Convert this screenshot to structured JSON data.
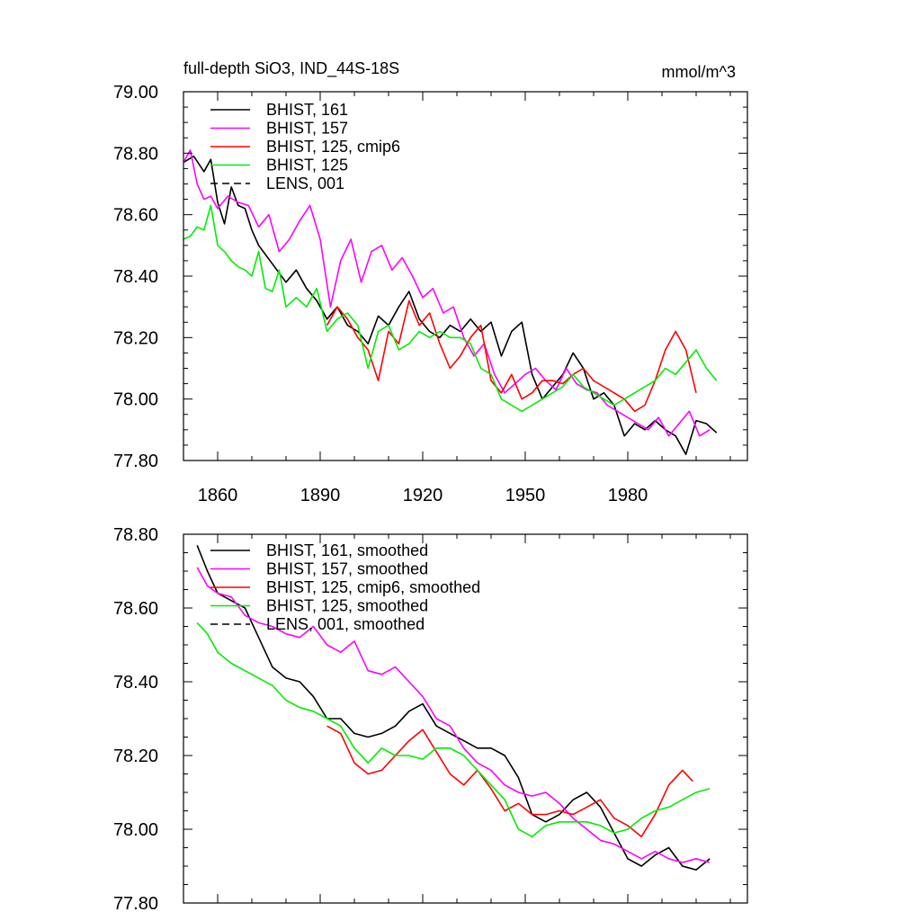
{
  "page": {
    "title": "full-depth SiO3, IND_44S-18S",
    "units": "mmol/m^3"
  },
  "chart_data": [
    {
      "type": "line",
      "title": "full-depth SiO3, IND_44S-18S",
      "units_label": "mmol/m^3",
      "xlim": [
        1850,
        2015
      ],
      "ylim": [
        77.8,
        79.0
      ],
      "x_ticks": [
        1860,
        1890,
        1920,
        1950,
        1980
      ],
      "x_tick_labels": [
        "1860",
        "1890",
        "1920",
        "1950",
        "1980"
      ],
      "y_ticks": [
        77.8,
        78.0,
        78.2,
        78.4,
        78.6,
        78.8,
        79.0
      ],
      "y_tick_labels": [
        "77.80",
        "78.00",
        "78.20",
        "78.40",
        "78.60",
        "78.80",
        "79.00"
      ],
      "legend_position": "top-left",
      "series": [
        {
          "name": "BHIST, 161",
          "color": "#000000",
          "dash": "solid",
          "x": [
            1850,
            1853,
            1856,
            1858,
            1860,
            1862,
            1864,
            1866,
            1868,
            1870,
            1872,
            1874,
            1876,
            1878,
            1880,
            1883,
            1886,
            1889,
            1892,
            1895,
            1898,
            1901,
            1904,
            1907,
            1910,
            1913,
            1916,
            1919,
            1922,
            1925,
            1928,
            1931,
            1934,
            1937,
            1940,
            1943,
            1946,
            1949,
            1952,
            1955,
            1958,
            1961,
            1964,
            1967,
            1970,
            1973,
            1976,
            1979,
            1982,
            1985,
            1988,
            1991,
            1994,
            1997,
            2000,
            2003,
            2006
          ],
          "values": [
            78.77,
            78.79,
            78.74,
            78.78,
            78.64,
            78.57,
            78.69,
            78.63,
            78.62,
            78.55,
            78.5,
            78.47,
            78.44,
            78.41,
            78.38,
            78.42,
            78.36,
            78.32,
            78.26,
            78.3,
            78.24,
            78.22,
            78.18,
            78.27,
            78.24,
            78.3,
            78.35,
            78.26,
            78.22,
            78.2,
            78.24,
            78.22,
            78.26,
            78.22,
            78.25,
            78.14,
            78.22,
            78.25,
            78.08,
            78.0,
            78.04,
            78.08,
            78.15,
            78.1,
            78.0,
            78.02,
            77.98,
            77.88,
            77.92,
            77.9,
            77.93,
            77.9,
            77.88,
            77.82,
            77.93,
            77.92,
            77.89
          ]
        },
        {
          "name": "BHIST, 157",
          "color": "#ff00ff",
          "dash": "solid",
          "x": [
            1850,
            1852,
            1854,
            1856,
            1858,
            1860,
            1863,
            1866,
            1869,
            1872,
            1875,
            1878,
            1881,
            1884,
            1887,
            1890,
            1893,
            1896,
            1899,
            1902,
            1905,
            1908,
            1911,
            1914,
            1917,
            1920,
            1923,
            1926,
            1929,
            1932,
            1935,
            1938,
            1941,
            1944,
            1947,
            1950,
            1953,
            1956,
            1959,
            1962,
            1965,
            1968,
            1971,
            1974,
            1977,
            1980,
            1983,
            1986,
            1989,
            1992,
            1995,
            1998,
            2001,
            2004
          ],
          "values": [
            78.77,
            78.81,
            78.7,
            78.65,
            78.66,
            78.62,
            78.66,
            78.64,
            78.63,
            78.56,
            78.6,
            78.48,
            78.52,
            78.58,
            78.63,
            78.52,
            78.3,
            78.45,
            78.52,
            78.38,
            78.48,
            78.5,
            78.42,
            78.46,
            78.4,
            78.33,
            78.36,
            78.28,
            78.3,
            78.2,
            78.14,
            78.18,
            78.08,
            78.02,
            78.05,
            78.08,
            78.1,
            78.06,
            78.03,
            78.1,
            78.05,
            78.03,
            78.02,
            77.98,
            77.96,
            77.94,
            77.92,
            77.9,
            77.94,
            77.88,
            77.92,
            77.96,
            77.88,
            77.9
          ]
        },
        {
          "name": "BHIST, 125, cmip6",
          "color": "#ff0000",
          "dash": "solid",
          "x": [
            1892,
            1895,
            1898,
            1901,
            1904,
            1907,
            1910,
            1913,
            1916,
            1919,
            1922,
            1925,
            1928,
            1931,
            1934,
            1937,
            1940,
            1943,
            1946,
            1949,
            1952,
            1955,
            1958,
            1961,
            1964,
            1967,
            1970,
            1973,
            1976,
            1979,
            1982,
            1985,
            1988,
            1991,
            1994,
            1997,
            2000
          ],
          "values": [
            78.24,
            78.3,
            78.26,
            78.2,
            78.16,
            78.06,
            78.22,
            78.18,
            78.32,
            78.24,
            78.28,
            78.18,
            78.1,
            78.14,
            78.2,
            78.24,
            78.06,
            78.02,
            78.08,
            78.0,
            78.02,
            78.06,
            78.06,
            78.05,
            78.08,
            78.1,
            78.06,
            78.04,
            78.02,
            78.0,
            77.96,
            77.98,
            78.06,
            78.16,
            78.22,
            78.16,
            78.02
          ]
        },
        {
          "name": "BHIST, 125",
          "color": "#00ee00",
          "dash": "solid",
          "x": [
            1850,
            1852,
            1854,
            1856,
            1858,
            1860,
            1862,
            1864,
            1866,
            1868,
            1870,
            1872,
            1874,
            1876,
            1878,
            1880,
            1883,
            1886,
            1889,
            1892,
            1895,
            1898,
            1901,
            1904,
            1907,
            1910,
            1913,
            1916,
            1919,
            1922,
            1925,
            1928,
            1931,
            1934,
            1937,
            1940,
            1943,
            1946,
            1949,
            1952,
            1955,
            1958,
            1961,
            1964,
            1967,
            1970,
            1973,
            1976,
            1979,
            1982,
            1985,
            1988,
            1991,
            1994,
            1997,
            2000,
            2003,
            2006
          ],
          "values": [
            78.52,
            78.53,
            78.56,
            78.55,
            78.63,
            78.5,
            78.48,
            78.45,
            78.43,
            78.42,
            78.4,
            78.48,
            78.36,
            78.35,
            78.42,
            78.3,
            78.33,
            78.3,
            78.36,
            78.22,
            78.26,
            78.28,
            78.24,
            78.1,
            78.22,
            78.24,
            78.16,
            78.18,
            78.22,
            78.2,
            78.22,
            78.2,
            78.2,
            78.18,
            78.1,
            78.08,
            78.0,
            77.98,
            77.96,
            77.98,
            78.0,
            78.02,
            78.04,
            78.08,
            78.04,
            78.02,
            78.0,
            77.98,
            78.0,
            78.02,
            78.04,
            78.06,
            78.1,
            78.08,
            78.12,
            78.16,
            78.1,
            78.06
          ]
        },
        {
          "name": "LENS, 001",
          "color": "#000000",
          "dash": "dashed",
          "x": [],
          "values": []
        }
      ]
    },
    {
      "type": "line",
      "title": "",
      "xlim": [
        1850,
        2015
      ],
      "ylim": [
        77.8,
        78.8
      ],
      "x_ticks": [
        1860,
        1890,
        1920,
        1950,
        1980
      ],
      "y_ticks": [
        77.8,
        78.0,
        78.2,
        78.4,
        78.6,
        78.8
      ],
      "y_tick_labels": [
        "77.80",
        "78.00",
        "78.20",
        "78.40",
        "78.60",
        "78.80"
      ],
      "legend_position": "top-left",
      "series": [
        {
          "name": "BHIST, 161, smoothed",
          "color": "#000000",
          "dash": "solid",
          "x": [
            1854,
            1857,
            1860,
            1864,
            1868,
            1872,
            1876,
            1880,
            1884,
            1888,
            1892,
            1896,
            1900,
            1904,
            1908,
            1912,
            1916,
            1920,
            1924,
            1928,
            1932,
            1936,
            1940,
            1944,
            1948,
            1952,
            1956,
            1960,
            1964,
            1968,
            1972,
            1976,
            1980,
            1984,
            1988,
            1992,
            1996,
            2000,
            2004
          ],
          "values": [
            78.77,
            78.7,
            78.64,
            78.62,
            78.6,
            78.52,
            78.44,
            78.41,
            78.4,
            78.36,
            78.3,
            78.3,
            78.26,
            78.25,
            78.26,
            78.28,
            78.32,
            78.34,
            78.28,
            78.26,
            78.24,
            78.22,
            78.22,
            78.2,
            78.14,
            78.04,
            78.02,
            78.04,
            78.08,
            78.1,
            78.06,
            77.99,
            77.92,
            77.9,
            77.93,
            77.95,
            77.9,
            77.89,
            77.92
          ]
        },
        {
          "name": "BHIST, 157, smoothed",
          "color": "#ff00ff",
          "dash": "solid",
          "x": [
            1854,
            1857,
            1860,
            1864,
            1868,
            1872,
            1876,
            1880,
            1884,
            1888,
            1892,
            1896,
            1900,
            1904,
            1908,
            1912,
            1916,
            1920,
            1924,
            1928,
            1932,
            1936,
            1940,
            1944,
            1948,
            1952,
            1956,
            1960,
            1964,
            1968,
            1972,
            1976,
            1980,
            1984,
            1988,
            1992,
            1996,
            2000,
            2004
          ],
          "values": [
            78.71,
            78.66,
            78.64,
            78.63,
            78.58,
            78.56,
            78.55,
            78.53,
            78.52,
            78.55,
            78.5,
            78.48,
            78.51,
            78.43,
            78.42,
            78.44,
            78.4,
            78.36,
            78.3,
            78.28,
            78.22,
            78.18,
            78.16,
            78.12,
            78.1,
            78.09,
            78.1,
            78.07,
            78.03,
            78.0,
            77.97,
            77.96,
            77.94,
            77.92,
            77.94,
            77.92,
            77.91,
            77.92,
            77.91
          ]
        },
        {
          "name": "BHIST, 125, cmip6, smoothed",
          "color": "#ff0000",
          "dash": "solid",
          "x": [
            1892,
            1896,
            1900,
            1904,
            1908,
            1912,
            1916,
            1920,
            1924,
            1928,
            1932,
            1936,
            1940,
            1944,
            1948,
            1952,
            1956,
            1960,
            1964,
            1968,
            1972,
            1976,
            1980,
            1984,
            1988,
            1992,
            1996,
            1999
          ],
          "values": [
            78.28,
            78.26,
            78.18,
            78.15,
            78.16,
            78.2,
            78.24,
            78.27,
            78.21,
            78.15,
            78.12,
            78.16,
            78.11,
            78.05,
            78.07,
            78.04,
            78.04,
            78.05,
            78.04,
            78.06,
            78.08,
            78.03,
            78.01,
            77.98,
            78.04,
            78.12,
            78.16,
            78.13
          ]
        },
        {
          "name": "BHIST, 125, smoothed",
          "color": "#00ee00",
          "dash": "solid",
          "x": [
            1854,
            1857,
            1860,
            1864,
            1868,
            1872,
            1876,
            1880,
            1884,
            1888,
            1892,
            1896,
            1900,
            1904,
            1908,
            1912,
            1916,
            1920,
            1924,
            1928,
            1932,
            1936,
            1940,
            1944,
            1948,
            1952,
            1956,
            1960,
            1964,
            1968,
            1972,
            1976,
            1980,
            1984,
            1988,
            1992,
            1996,
            2000,
            2004
          ],
          "values": [
            78.56,
            78.53,
            78.48,
            78.45,
            78.43,
            78.41,
            78.39,
            78.35,
            78.33,
            78.32,
            78.3,
            78.28,
            78.22,
            78.18,
            78.22,
            78.2,
            78.2,
            78.19,
            78.22,
            78.22,
            78.2,
            78.16,
            78.12,
            78.08,
            78.0,
            77.98,
            78.01,
            78.02,
            78.02,
            78.02,
            78.01,
            77.99,
            78.0,
            78.03,
            78.05,
            78.06,
            78.08,
            78.1,
            78.11
          ]
        },
        {
          "name": "LENS, 001, smoothed",
          "color": "#000000",
          "dash": "dashed",
          "x": [],
          "values": []
        }
      ]
    }
  ]
}
